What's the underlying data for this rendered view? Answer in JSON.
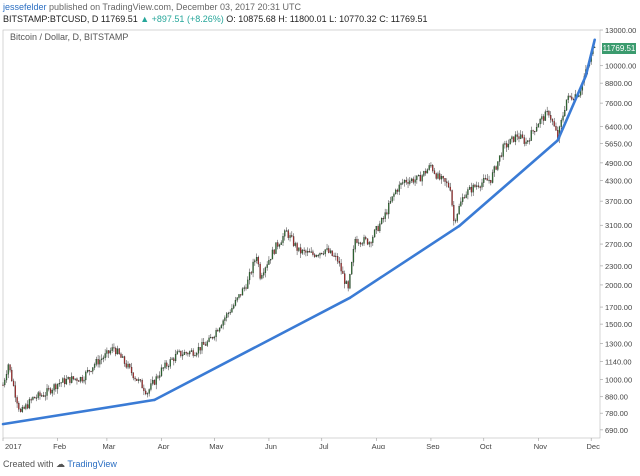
{
  "header": {
    "publisher": "jessefelder",
    "published_text": "published on TradingView.com, December 03, 2017 20:31 UTC",
    "symbol": "BITSTAMP:BTCUSD, D",
    "last": "11769.51",
    "change": "▲ +897.51 (+8.26%)",
    "ohlc": "O: 10875.68 H: 11800.01 L: 10770.32 C: 11769.51"
  },
  "footer": {
    "created_with": "Created with",
    "brand": "TradingView"
  },
  "chart_data": {
    "type": "candlestick",
    "title": "Bitcoin / Dollar, D, BITSTAMP",
    "y_scale": "log",
    "ylim": [
      650,
      13000
    ],
    "y_ticks": [
      "13000.00",
      "11769.51",
      "10000.00",
      "8800.00",
      "7600.00",
      "6400.00",
      "5650.00",
      "4900.00",
      "4300.00",
      "3700.00",
      "3100.00",
      "2700.00",
      "2300.00",
      "2000.00",
      "1700.00",
      "1500.00",
      "1300.00",
      "1140.00",
      "1000.00",
      "880.00",
      "780.00",
      "690.00"
    ],
    "x_ticks": [
      "2017",
      "Feb",
      "Mar",
      "Apr",
      "May",
      "Jun",
      "Jul",
      "Aug",
      "Sep",
      "Oct",
      "Nov",
      "Dec"
    ],
    "last_price_label": "11769.51",
    "colors": {
      "up": "#2e7d32",
      "down": "#c62828",
      "trendline": "#3a7bd5"
    },
    "close_path": [
      [
        "2017-01-01",
        960
      ],
      [
        "2017-01-04",
        1120
      ],
      [
        "2017-01-08",
        900
      ],
      [
        "2017-01-11",
        780
      ],
      [
        "2017-01-18",
        870
      ],
      [
        "2017-01-25",
        900
      ],
      [
        "2017-02-01",
        970
      ],
      [
        "2017-02-08",
        1000
      ],
      [
        "2017-02-15",
        1010
      ],
      [
        "2017-02-22",
        1120
      ],
      [
        "2017-03-01",
        1200
      ],
      [
        "2017-03-05",
        1260
      ],
      [
        "2017-03-10",
        1150
      ],
      [
        "2017-03-18",
        1000
      ],
      [
        "2017-03-24",
        910
      ],
      [
        "2017-04-01",
        1070
      ],
      [
        "2017-04-10",
        1200
      ],
      [
        "2017-04-20",
        1230
      ],
      [
        "2017-04-28",
        1320
      ],
      [
        "2017-05-05",
        1520
      ],
      [
        "2017-05-12",
        1720
      ],
      [
        "2017-05-20",
        2050
      ],
      [
        "2017-05-25",
        2500
      ],
      [
        "2017-05-27",
        2150
      ],
      [
        "2017-06-05",
        2650
      ],
      [
        "2017-06-11",
        2950
      ],
      [
        "2017-06-18",
        2560
      ],
      [
        "2017-06-26",
        2500
      ],
      [
        "2017-07-03",
        2590
      ],
      [
        "2017-07-10",
        2400
      ],
      [
        "2017-07-16",
        1920
      ],
      [
        "2017-07-20",
        2800
      ],
      [
        "2017-07-28",
        2750
      ],
      [
        "2017-08-05",
        3250
      ],
      [
        "2017-08-12",
        4000
      ],
      [
        "2017-08-17",
        4300
      ],
      [
        "2017-08-25",
        4350
      ],
      [
        "2017-09-01",
        4800
      ],
      [
        "2017-09-05",
        4400
      ],
      [
        "2017-09-12",
        4100
      ],
      [
        "2017-09-14",
        3200
      ],
      [
        "2017-09-20",
        3900
      ],
      [
        "2017-09-28",
        4200
      ],
      [
        "2017-10-05",
        4350
      ],
      [
        "2017-10-12",
        5450
      ],
      [
        "2017-10-20",
        6000
      ],
      [
        "2017-10-25",
        5700
      ],
      [
        "2017-11-01",
        6600
      ],
      [
        "2017-11-07",
        7100
      ],
      [
        "2017-11-12",
        5900
      ],
      [
        "2017-11-17",
        7800
      ],
      [
        "2017-11-24",
        8200
      ],
      [
        "2017-11-29",
        9900
      ],
      [
        "2017-12-03",
        11769.51
      ]
    ],
    "trendlines": [
      {
        "points": [
          [
            "2017-01-01",
            720
          ],
          [
            "2017-03-28",
            860
          ]
        ]
      },
      {
        "points": [
          [
            "2017-03-28",
            860
          ],
          [
            "2017-07-17",
            1820
          ]
        ]
      },
      {
        "points": [
          [
            "2017-07-17",
            1820
          ],
          [
            "2017-09-17",
            3080
          ]
        ]
      },
      {
        "points": [
          [
            "2017-09-17",
            3080
          ],
          [
            "2017-11-12",
            5780
          ]
        ]
      },
      {
        "points": [
          [
            "2017-11-12",
            5780
          ],
          [
            "2017-11-28",
            9300
          ],
          [
            "2017-12-03",
            12100
          ]
        ]
      }
    ]
  }
}
